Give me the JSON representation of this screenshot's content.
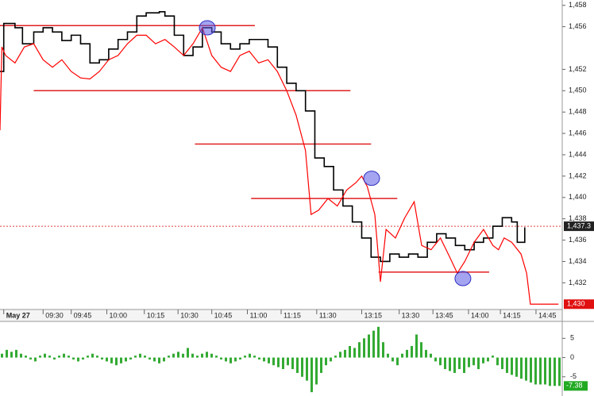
{
  "chart_data": {
    "type": "line",
    "xlim": [
      0,
      300
    ],
    "ylim": [
      1429.5,
      1458.5
    ],
    "xticks": [
      {
        "value": 2,
        "label": "May 27"
      },
      {
        "value": 23,
        "label": "09:30"
      },
      {
        "value": 38,
        "label": "09:45"
      },
      {
        "value": 57,
        "label": "10:00"
      },
      {
        "value": 77,
        "label": "10:15"
      },
      {
        "value": 95,
        "label": "10:30"
      },
      {
        "value": 113,
        "label": "10:45"
      },
      {
        "value": 132,
        "label": "11:00"
      },
      {
        "value": 150,
        "label": "11:15"
      },
      {
        "value": 169,
        "label": "11:30"
      },
      {
        "value": 193,
        "label": "13:15"
      },
      {
        "value": 213,
        "label": "13:30"
      },
      {
        "value": 231,
        "label": "13:45"
      },
      {
        "value": 250,
        "label": "14:00"
      },
      {
        "value": 267,
        "label": "14:15"
      },
      {
        "value": 286,
        "label": "14:45"
      }
    ],
    "yticks": [
      {
        "value": 1458,
        "label": "1,458"
      },
      {
        "value": 1456,
        "label": "1,456"
      },
      {
        "value": 1452,
        "label": "1,452"
      },
      {
        "value": 1450,
        "label": "1,450"
      },
      {
        "value": 1448,
        "label": "1,448"
      },
      {
        "value": 1446,
        "label": "1,446"
      },
      {
        "value": 1444,
        "label": "1,444"
      },
      {
        "value": 1442,
        "label": "1,442"
      },
      {
        "value": 1440,
        "label": "1,440"
      },
      {
        "value": 1438,
        "label": "1,438"
      },
      {
        "value": 1436,
        "label": "1,436"
      },
      {
        "value": 1434,
        "label": "1,434"
      },
      {
        "value": 1432,
        "label": "1,432"
      }
    ],
    "series": [
      {
        "color": "#000000",
        "x": [
          0,
          2,
          8,
          12,
          18,
          23,
          28,
          33,
          38,
          43,
          48,
          53,
          58,
          63,
          68,
          73,
          78,
          85,
          88,
          93,
          98,
          103,
          108,
          113,
          118,
          123,
          128,
          133,
          138,
          143,
          148,
          153,
          158,
          163,
          168,
          173,
          178,
          183,
          188,
          193,
          198,
          203,
          208,
          213,
          218,
          223,
          228,
          233,
          238,
          243,
          248,
          253,
          258,
          263,
          268,
          273,
          276,
          280
        ],
        "values": [
          1451.8,
          1456.3,
          1455.9,
          1454.4,
          1455.5,
          1455.9,
          1455.5,
          1454.7,
          1455.2,
          1454.4,
          1452.6,
          1452.9,
          1453.9,
          1454.8,
          1455.5,
          1457.0,
          1457.3,
          1457.4,
          1457.0,
          1455.2,
          1453.3,
          1454.1,
          1455.9,
          1455.5,
          1454.4,
          1453.9,
          1454.4,
          1454.8,
          1454.8,
          1454.1,
          1452.2,
          1450.7,
          1450.0,
          1448.1,
          1443.7,
          1442.9,
          1440.7,
          1439.2,
          1437.7,
          1436.2,
          1434.4,
          1434.0,
          1434.7,
          1434.4,
          1434.7,
          1434.4,
          1435.8,
          1436.6,
          1436.2,
          1435.5,
          1435.1,
          1435.8,
          1436.2,
          1437.3,
          1438.1,
          1437.7,
          1435.8,
          1437.2
        ]
      },
      {
        "color": "#ff0000",
        "x": [
          0,
          1,
          3,
          8,
          13,
          18,
          23,
          28,
          33,
          38,
          43,
          48,
          53,
          58,
          63,
          68,
          73,
          78,
          83,
          88,
          93,
          98,
          103,
          108,
          113,
          118,
          123,
          128,
          133,
          138,
          143,
          148,
          153,
          158,
          163,
          166,
          170,
          175,
          180,
          185,
          190,
          193,
          196,
          200,
          203,
          206,
          211,
          216,
          221,
          225,
          230,
          235,
          240,
          244,
          248,
          253,
          258,
          263,
          266,
          269,
          273,
          278,
          281,
          283,
          298
        ],
        "values": [
          1446.3,
          1454.1,
          1453.3,
          1452.6,
          1454.1,
          1454.4,
          1452.9,
          1452.2,
          1452.9,
          1451.8,
          1451.2,
          1451.1,
          1451.8,
          1452.9,
          1453.3,
          1454.4,
          1455.2,
          1455.2,
          1454.4,
          1454.8,
          1454.1,
          1453.3,
          1454.4,
          1455.9,
          1453.3,
          1452.2,
          1451.8,
          1453.3,
          1453.7,
          1452.6,
          1452.9,
          1451.8,
          1450.0,
          1447.7,
          1444.4,
          1438.4,
          1438.8,
          1439.9,
          1439.2,
          1440.7,
          1441.4,
          1442.0,
          1441.0,
          1438.4,
          1432.1,
          1437.0,
          1436.2,
          1438.1,
          1439.6,
          1435.5,
          1435.1,
          1436.2,
          1434.4,
          1432.9,
          1434.0,
          1435.8,
          1437.0,
          1435.5,
          1435.1,
          1436.2,
          1435.8,
          1434.7,
          1432.9,
          1430.0,
          1430.0
        ]
      }
    ],
    "levels": [
      {
        "start": 0,
        "end": 136,
        "value": 1456.1
      },
      {
        "start": 18,
        "end": 187,
        "value": 1450.0
      },
      {
        "start": 104,
        "end": 198,
        "value": 1445.0
      },
      {
        "start": 134,
        "end": 212,
        "value": 1439.9
      },
      {
        "start": 202,
        "end": 261,
        "value": 1433.0
      }
    ],
    "highlights": [
      {
        "x": 110.6,
        "value": 1455.9
      },
      {
        "x": 198.3,
        "value": 1441.8
      },
      {
        "x": 247,
        "value": 1432.4
      }
    ],
    "last_price": {
      "value": 1437.3,
      "label": "1,437.3"
    },
    "last_red": {
      "value": 1430,
      "label": "1,430"
    },
    "oscillator": {
      "type": "histogram",
      "color": "#33aa33",
      "ylim": [
        -10,
        9.2
      ],
      "yticks": [
        5,
        0,
        -5
      ],
      "values": [
        1,
        2,
        1.5,
        2,
        1,
        0.5,
        -0.5,
        -1,
        0.5,
        1,
        0.5,
        -0.5,
        0.5,
        1,
        0.5,
        -0.5,
        -1,
        -0.5,
        0.5,
        1,
        0.5,
        -0.5,
        -1,
        -1.5,
        -2,
        -1.5,
        -1,
        -0.5,
        0.5,
        1,
        0.5,
        -0.5,
        -1,
        -1.5,
        -1,
        0.5,
        1,
        1.5,
        1,
        2.5,
        1,
        0.5,
        1,
        1.5,
        1,
        0.5,
        -0.5,
        -1,
        -1.5,
        -1,
        -0.5,
        0.5,
        1,
        0.5,
        -0.5,
        -1,
        -1.5,
        -2,
        -2.5,
        -3,
        -2,
        -3,
        -4,
        -5,
        -6,
        -9,
        -7,
        -4,
        -2,
        -1,
        0.5,
        1.5,
        2,
        3,
        2.5,
        4,
        5,
        6,
        7,
        8,
        4,
        1,
        -1,
        -2,
        1,
        2,
        3,
        6,
        4,
        2,
        1,
        -1,
        -2,
        -3,
        -3.5,
        -4,
        -3,
        -4,
        -2.5,
        -2,
        -3,
        -1.5,
        -1,
        0.5,
        -2,
        -3,
        -4,
        -4.5,
        -5,
        -5.5,
        -6,
        -6.5,
        -7,
        -7,
        -7,
        -7.38,
        -7.38,
        -7.38
      ],
      "last": {
        "value": -7.38,
        "label": "-7.38"
      }
    }
  }
}
